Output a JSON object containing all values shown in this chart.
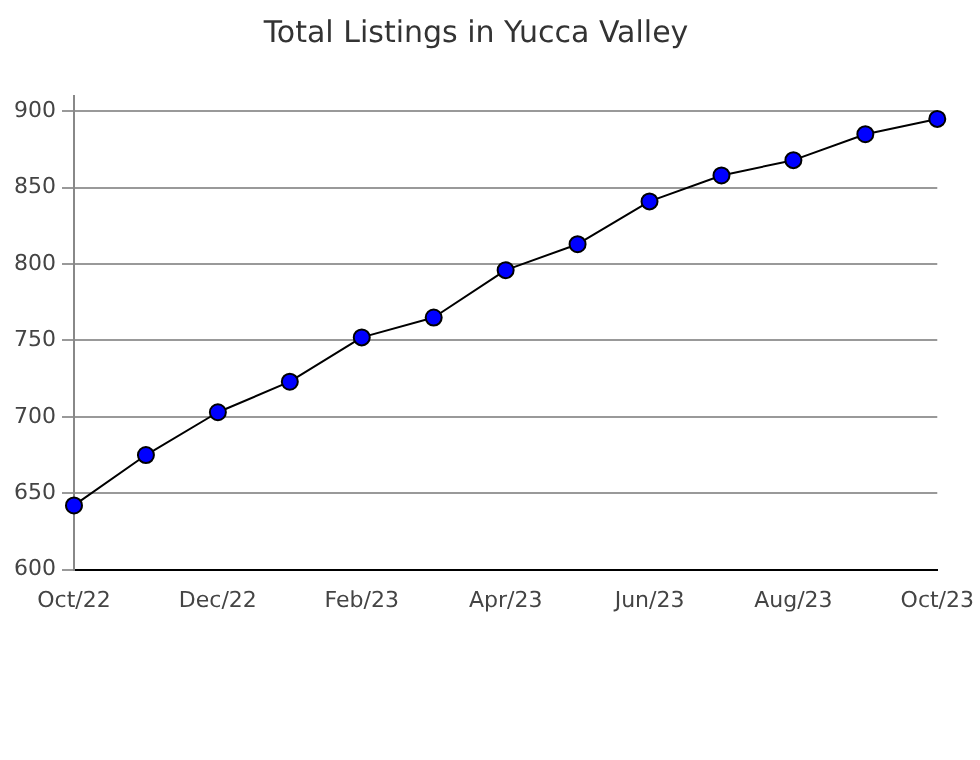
{
  "chart_data": {
    "type": "line",
    "title": "Total Listings in Yucca Valley",
    "categories": [
      "Oct/22",
      null,
      "Dec/22",
      null,
      "Feb/23",
      null,
      "Apr/23",
      null,
      "Jun/23",
      null,
      "Aug/23",
      null,
      "Oct/23"
    ],
    "series": [
      {
        "color": "#0000ff",
        "values": [
          642,
          675,
          703,
          723,
          752,
          765,
          796,
          813,
          841,
          858,
          868,
          885,
          895
        ]
      }
    ],
    "ylim": [
      600,
      910
    ],
    "yticks": [
      600,
      650,
      700,
      750,
      800,
      850,
      900
    ],
    "grid": "y",
    "legend": false,
    "marker": "circle",
    "line_style": "solid"
  }
}
